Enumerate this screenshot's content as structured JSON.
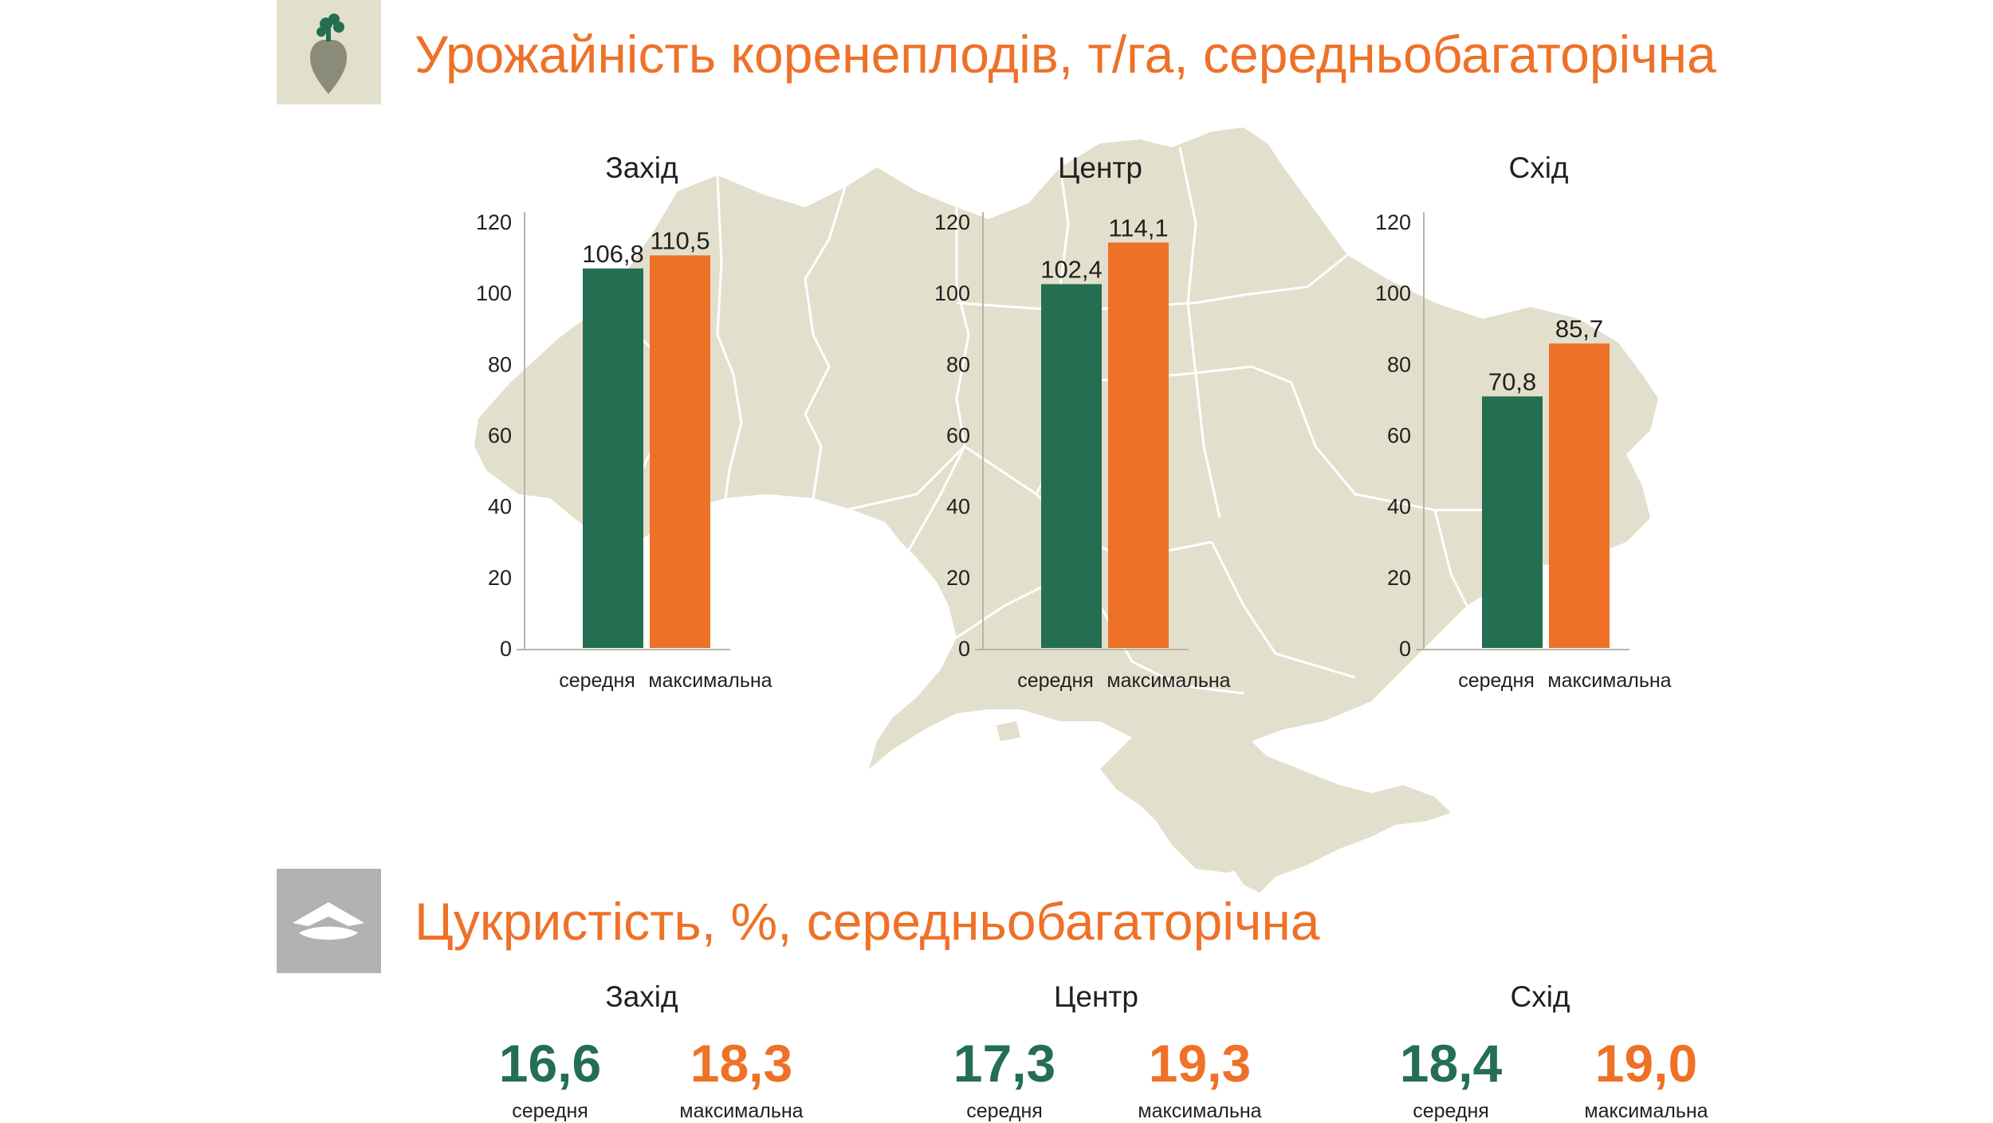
{
  "section1": {
    "title": "Урожайність коренеплодів, т/га, середньобагаторічна",
    "icon": "beet-icon"
  },
  "section2": {
    "title": "Цукристість, %, середньобагаторічна",
    "icon": "sugar-pile-icon"
  },
  "colors": {
    "average": "#246f51",
    "maximum": "#ee7128",
    "map": "#e2dfcc",
    "icon1_bg": "#e2dfcc",
    "icon2_bg": "#b0b3b2"
  },
  "chart_data": [
    {
      "type": "bar",
      "title": "Захід",
      "categories": [
        "середня",
        "максимальна"
      ],
      "values": [
        106.8,
        110.5
      ],
      "value_labels": [
        "106,8",
        "110,5"
      ],
      "yticks": [
        "0",
        "20",
        "40",
        "60",
        "80",
        "100",
        "120"
      ],
      "ylim": [
        0,
        120
      ]
    },
    {
      "type": "bar",
      "title": "Центр",
      "categories": [
        "середня",
        "максимальна"
      ],
      "values": [
        102.4,
        114.1
      ],
      "value_labels": [
        "102,4",
        "114,1"
      ],
      "yticks": [
        "0",
        "20",
        "40",
        "60",
        "80",
        "100",
        "120"
      ],
      "ylim": [
        0,
        120
      ]
    },
    {
      "type": "bar",
      "title": "Схід",
      "categories": [
        "середня",
        "максимальна"
      ],
      "values": [
        70.8,
        85.7
      ],
      "value_labels": [
        "70,8",
        "85,7"
      ],
      "yticks": [
        "0",
        "20",
        "40",
        "60",
        "80",
        "100",
        "120"
      ],
      "ylim": [
        0,
        120
      ]
    }
  ],
  "sugar": [
    {
      "region": "Захід",
      "average": "16,6",
      "maximum": "18,3",
      "average_label": "середня",
      "maximum_label": "максимальна"
    },
    {
      "region": "Центр",
      "average": "17,3",
      "maximum": "19,3",
      "average_label": "середня",
      "maximum_label": "максимальна"
    },
    {
      "region": "Схід",
      "average": "18,4",
      "maximum": "19,0",
      "average_label": "середня",
      "maximum_label": "максимальна"
    }
  ]
}
